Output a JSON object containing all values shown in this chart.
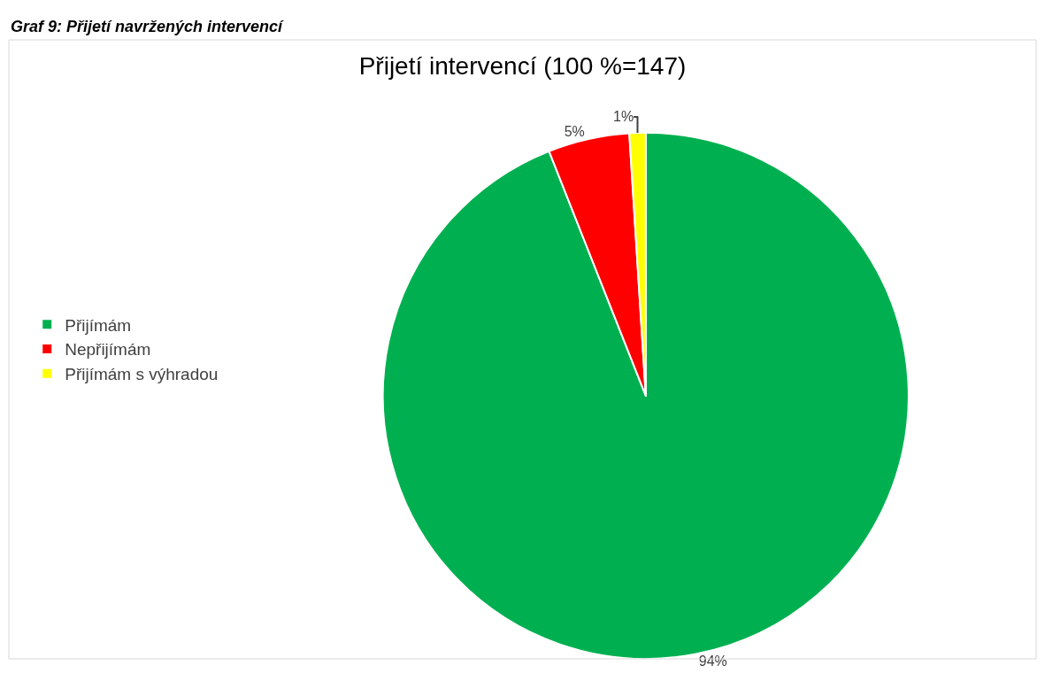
{
  "chart_data": {
    "type": "pie",
    "title": "Přijetí intervencí (100 %=147)",
    "annotations": [
      "Graf 9: Přijetí navržených intervencí"
    ],
    "categories": [
      "Přijímám",
      "Nepřijímám",
      "Přijímám s výhradou"
    ],
    "values": [
      94,
      5,
      1
    ],
    "colors": [
      "#00b050",
      "#ff0000",
      "#ffff00"
    ],
    "value_labels": [
      "94%",
      "5%",
      "1%"
    ],
    "legend": "left"
  }
}
